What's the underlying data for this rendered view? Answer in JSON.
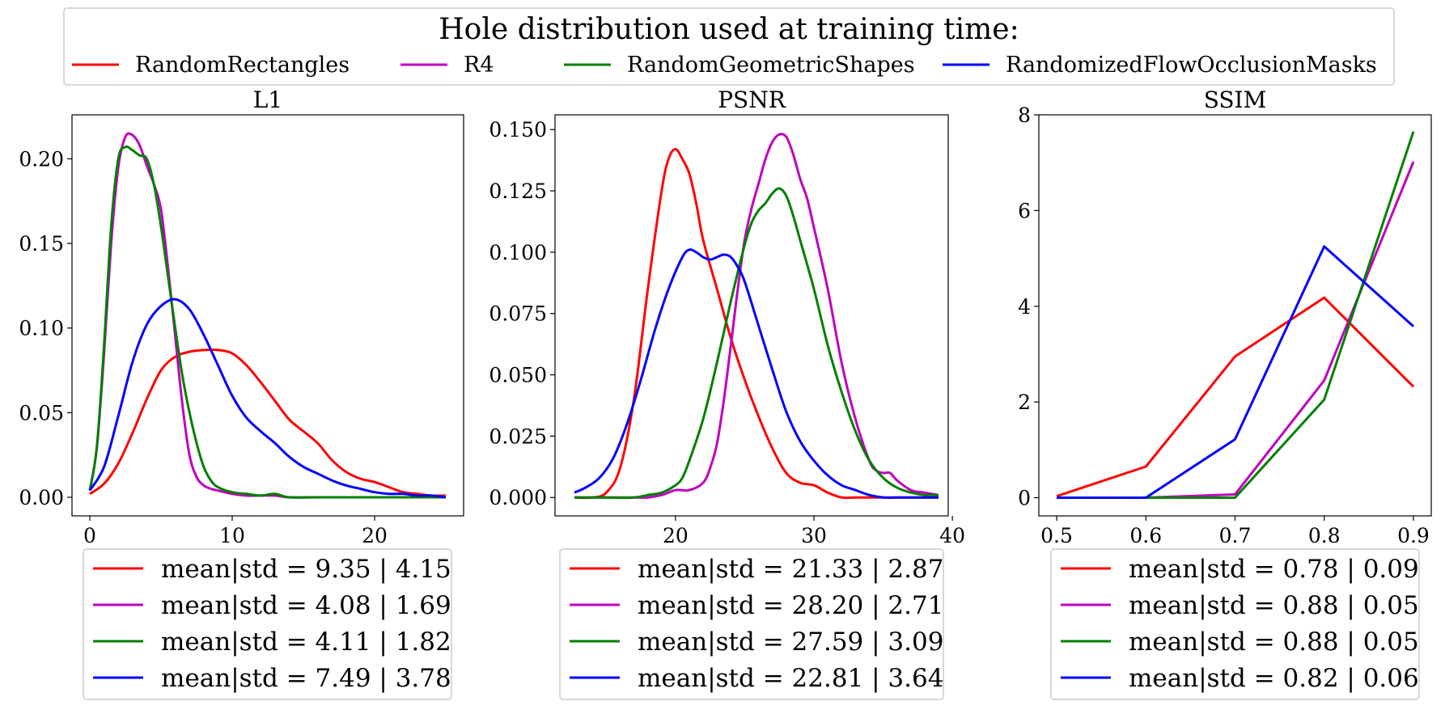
{
  "colors": {
    "RandomRectangles": "#ff0000",
    "R4": "#bf00bf",
    "RandomGeometricShapes": "#008000",
    "RandomizedFlowOcclusionMasks": "#0000ff"
  },
  "legend": {
    "title": "Hole distribution used at training time:",
    "entries": [
      "RandomRectangles",
      "R4",
      "RandomGeometricShapes",
      "RandomizedFlowOcclusionMasks"
    ]
  },
  "chart_data": [
    {
      "type": "line",
      "title": "L1",
      "xlim": [
        -1.25,
        26.25
      ],
      "ylim": [
        -0.011,
        0.226
      ],
      "xticks": [
        0,
        10,
        20
      ],
      "xtick_labels": [
        "0",
        "10",
        "20"
      ],
      "yticks": [
        0,
        0.05,
        0.1,
        0.15,
        0.2
      ],
      "ytick_labels": [
        "0.00",
        "0.05",
        "0.10",
        "0.15",
        "0.20"
      ],
      "series": [
        {
          "name": "RandomRectangles",
          "x": [
            0,
            1,
            2,
            3,
            4,
            5,
            6,
            7,
            8,
            9,
            10,
            11,
            12,
            13,
            14,
            15,
            16,
            17,
            18,
            19,
            20,
            21,
            22,
            23,
            24,
            25
          ],
          "y": [
            0.002,
            0.008,
            0.02,
            0.038,
            0.058,
            0.075,
            0.083,
            0.086,
            0.087,
            0.087,
            0.085,
            0.078,
            0.068,
            0.057,
            0.046,
            0.039,
            0.032,
            0.022,
            0.015,
            0.011,
            0.009,
            0.006,
            0.003,
            0.002,
            0.001,
            0.001
          ]
        },
        {
          "name": "R4",
          "x": [
            0,
            0.5,
            1,
            1.5,
            2,
            2.5,
            3,
            3.5,
            4,
            4.5,
            5,
            5.5,
            6,
            6.5,
            7,
            7.5,
            8,
            8.5,
            9,
            10,
            11,
            12,
            13,
            14,
            16,
            18,
            20,
            22,
            25
          ],
          "y": [
            0.004,
            0.03,
            0.085,
            0.15,
            0.195,
            0.213,
            0.214,
            0.208,
            0.196,
            0.185,
            0.17,
            0.135,
            0.095,
            0.055,
            0.025,
            0.012,
            0.007,
            0.005,
            0.004,
            0.002,
            0.001,
            0.001,
            0.001,
            0.0,
            0.0,
            0.0,
            0.0,
            0.0,
            0.0
          ]
        },
        {
          "name": "RandomGeometricShapes",
          "x": [
            0,
            0.5,
            1,
            1.5,
            2,
            2.5,
            3,
            3.5,
            4,
            4.5,
            5,
            5.5,
            6,
            6.5,
            7,
            7.5,
            8,
            8.5,
            9,
            10,
            11,
            12,
            13,
            14,
            16,
            18,
            20,
            22,
            25
          ],
          "y": [
            0.004,
            0.03,
            0.09,
            0.16,
            0.2,
            0.207,
            0.205,
            0.202,
            0.2,
            0.185,
            0.16,
            0.13,
            0.1,
            0.072,
            0.05,
            0.032,
            0.018,
            0.01,
            0.006,
            0.003,
            0.002,
            0.001,
            0.002,
            0.0,
            0.0,
            0.0,
            0.0,
            0.0,
            0.0
          ]
        },
        {
          "name": "RandomizedFlowOcclusionMasks",
          "x": [
            0,
            1,
            2,
            3,
            4,
            5,
            6,
            7,
            8,
            9,
            10,
            11,
            12,
            13,
            14,
            15,
            16,
            17,
            18,
            19,
            20,
            21,
            22,
            23,
            24,
            25
          ],
          "y": [
            0.004,
            0.018,
            0.048,
            0.08,
            0.102,
            0.113,
            0.117,
            0.111,
            0.096,
            0.078,
            0.06,
            0.047,
            0.039,
            0.032,
            0.024,
            0.018,
            0.014,
            0.01,
            0.007,
            0.005,
            0.003,
            0.002,
            0.002,
            0.001,
            0.001,
            0.0
          ]
        }
      ],
      "stats": [
        "mean|std = 9.35 | 4.15",
        "mean|std = 4.08 | 1.69",
        "mean|std = 4.11 | 1.82",
        "mean|std = 7.49 | 3.78"
      ]
    },
    {
      "type": "line",
      "title": "PSNR",
      "xlim": [
        11.3,
        39.7
      ],
      "ylim": [
        -0.0075,
        0.156
      ],
      "xticks": [
        20,
        30,
        40
      ],
      "xtick_labels": [
        "20",
        "30",
        "40"
      ],
      "yticks": [
        0,
        0.025,
        0.05,
        0.075,
        0.1,
        0.125,
        0.15
      ],
      "ytick_labels": [
        "0.000",
        "0.025",
        "0.050",
        "0.075",
        "0.100",
        "0.125",
        "0.150"
      ],
      "series": [
        {
          "name": "RandomRectangles",
          "x": [
            12.7,
            14,
            15,
            16,
            17,
            18,
            19,
            19.5,
            20,
            20.5,
            21,
            21.5,
            22,
            23,
            24,
            25,
            26,
            27,
            28,
            29,
            30,
            31,
            32,
            33,
            35,
            37,
            39
          ],
          "y": [
            0.0,
            0.0,
            0.002,
            0.012,
            0.04,
            0.085,
            0.125,
            0.138,
            0.142,
            0.138,
            0.132,
            0.12,
            0.105,
            0.085,
            0.065,
            0.048,
            0.033,
            0.02,
            0.01,
            0.006,
            0.005,
            0.002,
            0.0,
            0.0,
            0.0,
            0.0,
            0.0
          ]
        },
        {
          "name": "R4",
          "x": [
            12.7,
            15,
            17,
            18,
            19,
            20,
            21,
            22,
            22.5,
            23,
            23.5,
            24,
            24.5,
            25,
            25.5,
            26,
            26.5,
            27,
            27.5,
            28,
            28.5,
            29,
            29.5,
            30,
            31,
            32,
            33,
            34,
            34.5,
            35,
            35.5,
            36,
            37,
            38,
            39
          ],
          "y": [
            0.0,
            0.0,
            0.0,
            0.0,
            0.001,
            0.003,
            0.003,
            0.006,
            0.012,
            0.022,
            0.04,
            0.062,
            0.085,
            0.105,
            0.118,
            0.128,
            0.138,
            0.145,
            0.148,
            0.147,
            0.14,
            0.13,
            0.122,
            0.11,
            0.085,
            0.055,
            0.032,
            0.015,
            0.011,
            0.01,
            0.01,
            0.007,
            0.003,
            0.002,
            0.001
          ]
        },
        {
          "name": "RandomGeometricShapes",
          "x": [
            12.7,
            15,
            17,
            18,
            19,
            20,
            20.5,
            21,
            22,
            23,
            24,
            25,
            25.5,
            26,
            26.5,
            27,
            27.5,
            28,
            28.5,
            29,
            30,
            31,
            32,
            33,
            34,
            35,
            36,
            37,
            38,
            39
          ],
          "y": [
            0.0,
            0.0,
            0.0,
            0.001,
            0.002,
            0.005,
            0.008,
            0.015,
            0.032,
            0.055,
            0.08,
            0.103,
            0.112,
            0.117,
            0.12,
            0.124,
            0.126,
            0.123,
            0.115,
            0.105,
            0.085,
            0.062,
            0.043,
            0.027,
            0.015,
            0.008,
            0.004,
            0.002,
            0.001,
            0.001
          ]
        },
        {
          "name": "RandomizedFlowOcclusionMasks",
          "x": [
            12.7,
            13.5,
            14.5,
            15.5,
            16.5,
            17.5,
            18.5,
            19.5,
            20.5,
            21,
            21.5,
            22,
            22.5,
            23,
            23.5,
            24,
            24.5,
            25,
            26,
            27,
            28,
            29,
            30,
            31,
            32,
            33,
            34,
            35,
            36,
            37,
            38,
            39
          ],
          "y": [
            0.002,
            0.004,
            0.008,
            0.016,
            0.03,
            0.048,
            0.068,
            0.085,
            0.098,
            0.101,
            0.1,
            0.098,
            0.097,
            0.098,
            0.099,
            0.098,
            0.094,
            0.088,
            0.07,
            0.052,
            0.035,
            0.023,
            0.015,
            0.009,
            0.005,
            0.003,
            0.001,
            0.0,
            0.0,
            0.0,
            0.0,
            0.0
          ]
        }
      ],
      "stats": [
        "mean|std = 21.33 | 2.87",
        "mean|std = 28.20 | 2.71",
        "mean|std = 27.59 | 3.09",
        "mean|std = 22.81 | 3.64"
      ]
    },
    {
      "type": "line",
      "title": "SSIM",
      "xlim": [
        0.48,
        0.92
      ],
      "ylim": [
        -0.38,
        8.0
      ],
      "xticks": [
        0.5,
        0.6,
        0.7,
        0.8,
        0.9
      ],
      "xtick_labels": [
        "0.5",
        "0.6",
        "0.7",
        "0.8",
        "0.9"
      ],
      "yticks": [
        0,
        2,
        4,
        6,
        8
      ],
      "ytick_labels": [
        "0",
        "2",
        "4",
        "6",
        "8"
      ],
      "series": [
        {
          "name": "RandomRectangles",
          "x": [
            0.5,
            0.6,
            0.7,
            0.8,
            0.9
          ],
          "y": [
            0.03,
            0.65,
            2.95,
            4.18,
            2.32
          ]
        },
        {
          "name": "R4",
          "x": [
            0.5,
            0.6,
            0.7,
            0.8,
            0.9
          ],
          "y": [
            0.0,
            0.0,
            0.07,
            2.45,
            7.02
          ]
        },
        {
          "name": "RandomGeometricShapes",
          "x": [
            0.5,
            0.6,
            0.7,
            0.8,
            0.9
          ],
          "y": [
            0.0,
            0.0,
            0.0,
            2.05,
            7.65
          ]
        },
        {
          "name": "RandomizedFlowOcclusionMasks",
          "x": [
            0.5,
            0.6,
            0.7,
            0.8,
            0.9
          ],
          "y": [
            0.0,
            0.0,
            1.22,
            5.25,
            3.58
          ]
        }
      ],
      "stats": [
        "mean|std = 0.78 | 0.09",
        "mean|std = 0.88 | 0.05",
        "mean|std = 0.88 | 0.05",
        "mean|std = 0.82 | 0.06"
      ]
    }
  ]
}
